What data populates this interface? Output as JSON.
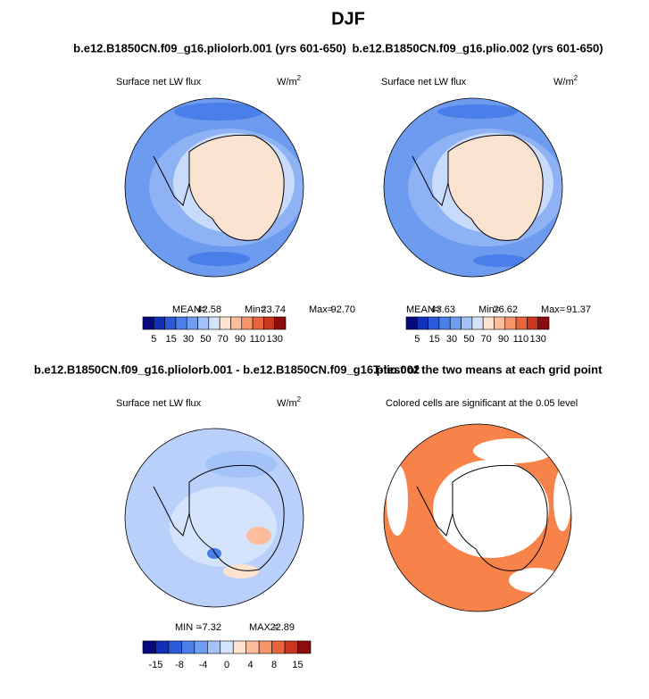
{
  "title": "DJF",
  "panels": [
    {
      "title": "b.e12.B1850CN.f09_g16.pliolorb.001 (yrs 601-650)",
      "subtitle": "Surface net LW flux",
      "units": "W/m",
      "units_sup": "2",
      "stats": [
        "MEAN=",
        "42.58",
        "Min=",
        "23.74",
        "Max=",
        "92.70"
      ],
      "colorbar": {
        "colors": [
          "#08087e",
          "#1030b8",
          "#2a5ad8",
          "#4a7ee8",
          "#6f9ef0",
          "#a2c2f8",
          "#d4e4fc",
          "#fde3d0",
          "#fbbd9c",
          "#f6946a",
          "#e8643c",
          "#c8361e",
          "#8a0c0c"
        ],
        "labels": [
          "5",
          "15",
          "30",
          "50",
          "70",
          "90",
          "110",
          "130"
        ]
      }
    },
    {
      "title": "b.e12.B1850CN.f09_g16.plio.002 (yrs 601-650)",
      "subtitle": "Surface net LW flux",
      "units": "W/m",
      "units_sup": "2",
      "stats": [
        "MEAN=",
        "43.63",
        "Min=",
        "26.62",
        "Max=",
        "91.37"
      ],
      "colorbar": {
        "colors": [
          "#08087e",
          "#1030b8",
          "#2a5ad8",
          "#4a7ee8",
          "#6f9ef0",
          "#a2c2f8",
          "#d4e4fc",
          "#fde3d0",
          "#fbbd9c",
          "#f6946a",
          "#e8643c",
          "#c8361e",
          "#8a0c0c"
        ],
        "labels": [
          "5",
          "15",
          "30",
          "50",
          "70",
          "90",
          "110",
          "130"
        ]
      }
    },
    {
      "title": "b.e12.B1850CN.f09_g16.pliolorb.001 - b.e12.B1850CN.f09_g16.plio.002",
      "subtitle": "Surface net LW flux",
      "units": "W/m",
      "units_sup": "2",
      "stats": [
        "MIN =",
        "-7.32",
        "MAX =",
        "22.89"
      ],
      "colorbar": {
        "colors": [
          "#08087e",
          "#1030b8",
          "#2a5ad8",
          "#4a7ee8",
          "#6f9ef0",
          "#a2c2f8",
          "#d4e4fc",
          "#fde3d0",
          "#fbbd9c",
          "#f6946a",
          "#e8643c",
          "#c8361e",
          "#8a0c0c"
        ],
        "labels": [
          "-15",
          "-8",
          "-4",
          "0",
          "4",
          "8",
          "15"
        ]
      }
    },
    {
      "title": "T-test of the two means at each grid point",
      "subtitle": "Colored cells are significant at the 0.05 level"
    }
  ]
}
